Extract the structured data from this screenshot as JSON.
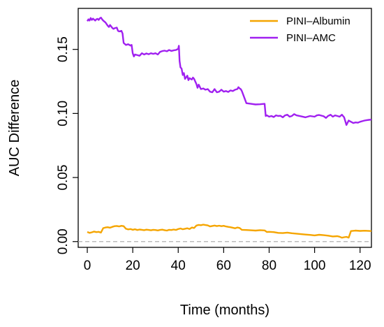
{
  "chart_data": {
    "type": "line",
    "xlabel": "Time (months)",
    "ylabel": "AUC Difference",
    "xlim": [
      -4,
      125
    ],
    "ylim": [
      -0.0045,
      0.182
    ],
    "xticks": [
      0,
      20,
      40,
      60,
      80,
      100,
      120
    ],
    "yticks": [
      0.0,
      0.05,
      0.1,
      0.15
    ],
    "ytick_labels": [
      "0.00",
      "0.05",
      "0.10",
      "0.15"
    ],
    "reference_line": {
      "y": 0,
      "style": "dashed",
      "color": "#b0b0b0"
    },
    "legend_position": "top-right",
    "series": [
      {
        "name": "PINI–Albumin",
        "color": "#f5a500",
        "x": [
          0,
          1,
          2,
          3,
          4,
          5,
          6,
          7,
          8,
          9,
          10,
          11,
          12,
          13,
          14,
          15,
          16,
          17,
          18,
          19,
          20,
          21,
          22,
          23,
          24,
          25,
          26,
          27,
          28,
          29,
          30,
          31,
          32,
          33,
          34,
          35,
          36,
          37,
          38,
          39,
          40,
          41,
          42,
          43,
          44,
          45,
          46,
          47,
          48,
          49,
          50,
          51,
          52,
          53,
          54,
          55,
          56,
          57,
          58,
          59,
          60,
          61,
          62,
          63,
          64,
          65,
          66,
          67,
          68,
          70,
          72,
          74,
          76,
          78,
          79,
          80,
          82,
          84,
          86,
          88,
          90,
          92,
          94,
          96,
          98,
          100,
          102,
          104,
          106,
          108,
          110,
          111,
          112,
          113,
          114,
          115,
          116,
          118,
          120,
          122,
          125
        ],
        "values": [
          0.0075,
          0.0068,
          0.0072,
          0.0078,
          0.0074,
          0.0076,
          0.007,
          0.0105,
          0.011,
          0.0112,
          0.0108,
          0.0115,
          0.012,
          0.0122,
          0.0118,
          0.0123,
          0.012,
          0.01,
          0.0095,
          0.0098,
          0.0092,
          0.0096,
          0.009,
          0.0094,
          0.0092,
          0.0089,
          0.0093,
          0.0091,
          0.0088,
          0.0092,
          0.009,
          0.0087,
          0.0091,
          0.0093,
          0.0089,
          0.0086,
          0.0092,
          0.009,
          0.0094,
          0.0091,
          0.0098,
          0.0102,
          0.0096,
          0.01,
          0.0104,
          0.0098,
          0.011,
          0.0106,
          0.0125,
          0.013,
          0.0128,
          0.0132,
          0.0129,
          0.0126,
          0.0118,
          0.0122,
          0.0125,
          0.0121,
          0.0124,
          0.012,
          0.0123,
          0.0118,
          0.0115,
          0.0112,
          0.0108,
          0.0104,
          0.011,
          0.0106,
          0.0092,
          0.009,
          0.0088,
          0.0086,
          0.0089,
          0.0087,
          0.0075,
          0.0076,
          0.0074,
          0.0068,
          0.0066,
          0.007,
          0.0065,
          0.0062,
          0.0058,
          0.0055,
          0.0052,
          0.0048,
          0.0053,
          0.005,
          0.0046,
          0.004,
          0.0042,
          0.0038,
          0.003,
          0.0034,
          0.0037,
          0.0031,
          0.0082,
          0.0086,
          0.0083,
          0.0085,
          0.0082
        ]
      },
      {
        "name": "PINI–AMC",
        "color": "#a020f0",
        "x": [
          0,
          0.5,
          1,
          1.5,
          2,
          2.5,
          3,
          3.5,
          4,
          4.5,
          5,
          5.5,
          6,
          6.5,
          7,
          8,
          9,
          9.5,
          10,
          11,
          11.5,
          12,
          13,
          13.5,
          14,
          15,
          15.5,
          16,
          17,
          18,
          19,
          19.5,
          20,
          20.5,
          21,
          22,
          23,
          24,
          25,
          26,
          27,
          28,
          29,
          30,
          31,
          32,
          33,
          34,
          35,
          36,
          37,
          38,
          39,
          40,
          40.3,
          40.6,
          41,
          41.5,
          42,
          42.5,
          43,
          44,
          44.5,
          45,
          46,
          46.5,
          47,
          48,
          48.5,
          49,
          50,
          51,
          52,
          53,
          54,
          55,
          56,
          57,
          58,
          59,
          60,
          61,
          62,
          63,
          64,
          65,
          66,
          66.5,
          67,
          67.5,
          68,
          70,
          72,
          74,
          76,
          78,
          78.5,
          79,
          80,
          81,
          82,
          83,
          84,
          85,
          86,
          87,
          88,
          89,
          90,
          91,
          92,
          94,
          96,
          98,
          100,
          101,
          102,
          104,
          105,
          106,
          106.5,
          107,
          108,
          109,
          110,
          111,
          112,
          113,
          114,
          115,
          116,
          117,
          118,
          119,
          120,
          121,
          122,
          123,
          124,
          125
        ],
        "values": [
          0.172,
          0.1735,
          0.1725,
          0.1745,
          0.173,
          0.174,
          0.1732,
          0.1725,
          0.1735,
          0.1738,
          0.173,
          0.1742,
          0.1748,
          0.1735,
          0.1725,
          0.171,
          0.1685,
          0.1675,
          0.169,
          0.1668,
          0.166,
          0.1665,
          0.167,
          0.1645,
          0.164,
          0.1645,
          0.1625,
          0.155,
          0.1535,
          0.154,
          0.153,
          0.1535,
          0.147,
          0.1445,
          0.146,
          0.1455,
          0.145,
          0.147,
          0.146,
          0.1468,
          0.1462,
          0.147,
          0.1465,
          0.147,
          0.146,
          0.148,
          0.1487,
          0.149,
          0.1485,
          0.1495,
          0.1488,
          0.1492,
          0.1495,
          0.1505,
          0.1528,
          0.141,
          0.136,
          0.135,
          0.13,
          0.1315,
          0.127,
          0.1295,
          0.126,
          0.1275,
          0.1265,
          0.128,
          0.127,
          0.123,
          0.12,
          0.1225,
          0.119,
          0.1195,
          0.1185,
          0.119,
          0.117,
          0.1165,
          0.119,
          0.1165,
          0.117,
          0.1185,
          0.117,
          0.1175,
          0.1168,
          0.118,
          0.1175,
          0.1185,
          0.119,
          0.1205,
          0.1195,
          0.119,
          0.1175,
          0.108,
          0.1075,
          0.107,
          0.1072,
          0.1075,
          0.098,
          0.0985,
          0.0975,
          0.098,
          0.0972,
          0.0985,
          0.098,
          0.0982,
          0.097,
          0.0985,
          0.099,
          0.0975,
          0.098,
          0.0995,
          0.0985,
          0.0978,
          0.097,
          0.098,
          0.0975,
          0.0985,
          0.0988,
          0.0978,
          0.0965,
          0.0982,
          0.0985,
          0.099,
          0.0975,
          0.0985,
          0.098,
          0.0975,
          0.099,
          0.097,
          0.091,
          0.0945,
          0.0935,
          0.0925,
          0.093,
          0.0928,
          0.0935,
          0.094,
          0.0945,
          0.0948,
          0.095,
          0.0952
        ]
      }
    ]
  }
}
